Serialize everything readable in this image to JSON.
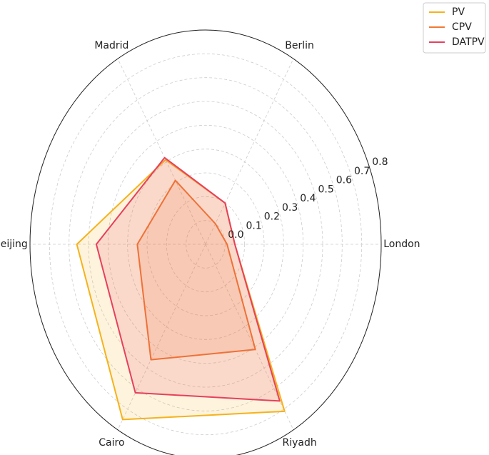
{
  "chart_data": {
    "type": "radar",
    "categories": [
      "London",
      "Berlin",
      "Madrid",
      "Beijing",
      "Cairo",
      "Riyadh"
    ],
    "series": [
      {
        "name": "PV",
        "color": "#f5b21c",
        "values": [
          0.05,
          0.1,
          0.31,
          0.56,
          0.75,
          0.71
        ]
      },
      {
        "name": "CPV",
        "color": "#f07a32",
        "values": [
          0.01,
          0.0,
          0.21,
          0.25,
          0.46,
          0.41
        ]
      },
      {
        "name": "DATPV",
        "color": "#e6405c",
        "values": [
          0.05,
          0.1,
          0.32,
          0.46,
          0.62,
          0.66
        ]
      }
    ],
    "ylim": [
      -0.1,
      0.8
    ],
    "yticks": [
      {
        "value": 0,
        "label": "0.0"
      },
      0.1,
      0.2,
      0.3,
      0.4,
      0.5,
      0.6,
      0.7,
      0.8
    ],
    "grid": true,
    "legend": "upper right"
  }
}
